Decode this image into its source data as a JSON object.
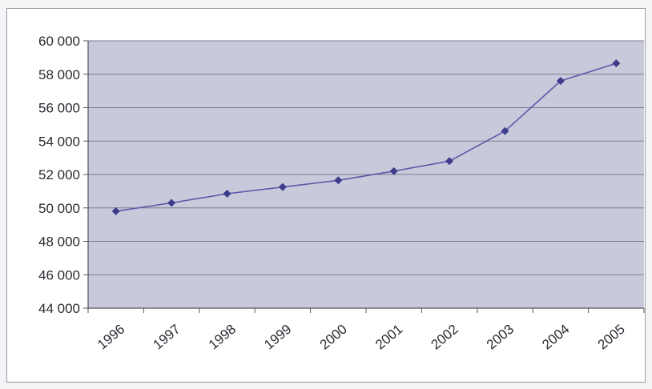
{
  "chart_data": {
    "type": "line",
    "x": [
      "1996",
      "1997",
      "1998",
      "1999",
      "2000",
      "2001",
      "2002",
      "2003",
      "2004",
      "2005"
    ],
    "series": [
      {
        "values": [
          49800,
          50300,
          50850,
          51250,
          51650,
          52200,
          52800,
          54600,
          57600,
          58650
        ]
      }
    ],
    "title": "",
    "xlabel": "",
    "ylabel": "",
    "ylim": [
      44000,
      60000
    ],
    "yticks": [
      44000,
      46000,
      48000,
      50000,
      52000,
      54000,
      56000,
      58000,
      60000
    ],
    "ytick_labels": [
      "44 000",
      "46 000",
      "48 000",
      "50 000",
      "52 000",
      "54 000",
      "56 000",
      "58 000",
      "60 000"
    ],
    "grid": "horizontal",
    "legend": "none",
    "colors": {
      "plot_background": "#c9c9dc",
      "gridline": "#7a7a8e",
      "line": "#5a5aa8",
      "marker": "#3c3c8a",
      "axis": "#55555f",
      "text": "#2b2b33"
    }
  }
}
